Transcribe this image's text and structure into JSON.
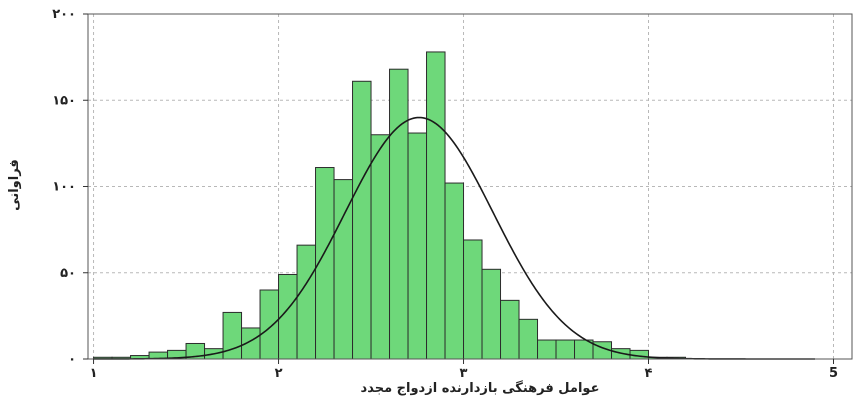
{
  "chart_data": {
    "type": "bar",
    "subtype": "histogram",
    "xlabel": "عوامل فرهنگی بازدارنده ازدواج مجدد",
    "ylabel": "فراوانی",
    "xlim": [
      0.97,
      5.1
    ],
    "ylim": [
      0,
      200
    ],
    "x_ticks": [
      {
        "value": 1,
        "label": "۱"
      },
      {
        "value": 2,
        "label": "۲"
      },
      {
        "value": 3,
        "label": "۳"
      },
      {
        "value": 4,
        "label": "۴"
      },
      {
        "value": 5,
        "label": "5"
      }
    ],
    "y_ticks": [
      {
        "value": 0,
        "label": "۰"
      },
      {
        "value": 50,
        "label": "۵۰"
      },
      {
        "value": 100,
        "label": "۱۰۰"
      },
      {
        "value": 150,
        "label": "۱۵۰"
      },
      {
        "value": 200,
        "label": "۲۰۰"
      }
    ],
    "grid": true,
    "bins": {
      "start": 1.0,
      "width": 0.1,
      "counts": [
        1,
        1,
        2,
        4,
        5,
        9,
        6,
        27,
        18,
        40,
        49,
        66,
        111,
        104,
        161,
        130,
        168,
        131,
        178,
        102,
        69,
        52,
        34,
        23,
        11,
        11,
        11,
        10,
        6,
        5,
        1,
        1
      ]
    },
    "normal_curve": {
      "mean": 2.76,
      "sd": 0.4,
      "peak": 140
    },
    "colors": {
      "bar_fill": "#6ed87a",
      "bar_edge": "#2c2c2c",
      "curve": "#1a1a1a",
      "grid": "#b8b8b8",
      "frame": "#555555"
    }
  }
}
